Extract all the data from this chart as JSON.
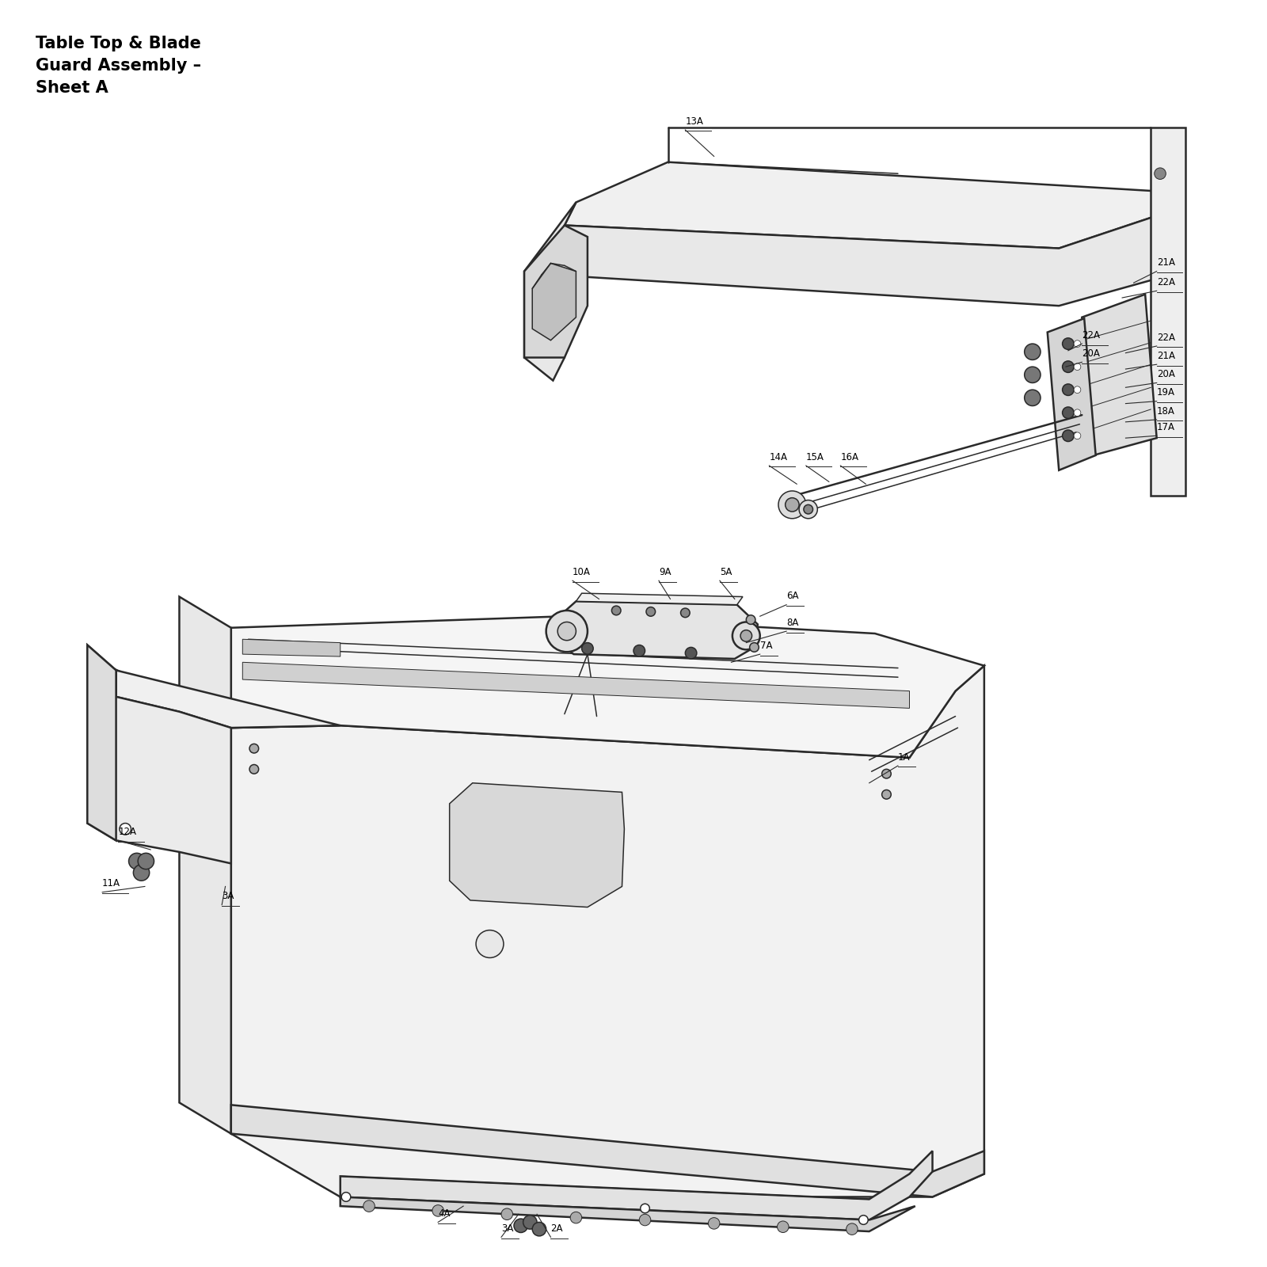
{
  "title": "Table Top & Blade\nGuard Assembly –\nSheet A",
  "background_color": "#ffffff",
  "line_color": "#2a2a2a",
  "label_color": "#000000",
  "label_fontsize": 8.5,
  "title_fontsize": 15,
  "fig_width": 16,
  "fig_height": 16,
  "upper_labels": [
    [
      "13A",
      595,
      112,
      620,
      135
    ],
    [
      "21A",
      1005,
      235,
      985,
      245
    ],
    [
      "22A",
      1005,
      252,
      975,
      258
    ],
    [
      "22A",
      940,
      298,
      928,
      304
    ],
    [
      "20A",
      940,
      314,
      926,
      318
    ],
    [
      "22A",
      1005,
      300,
      978,
      306
    ],
    [
      "21A",
      1005,
      316,
      978,
      320
    ],
    [
      "20A",
      1005,
      332,
      978,
      336
    ],
    [
      "19A",
      1005,
      348,
      978,
      350
    ],
    [
      "18A",
      1005,
      364,
      978,
      366
    ],
    [
      "17A",
      1005,
      378,
      978,
      380
    ],
    [
      "14A",
      668,
      404,
      692,
      420
    ],
    [
      "15A",
      700,
      404,
      720,
      418
    ],
    [
      "16A",
      730,
      404,
      752,
      420
    ]
  ],
  "lower_labels": [
    [
      "10A",
      497,
      504,
      520,
      520
    ],
    [
      "9A",
      572,
      504,
      582,
      520
    ],
    [
      "5A",
      625,
      504,
      638,
      520
    ],
    [
      "6A",
      683,
      525,
      660,
      535
    ],
    [
      "8A",
      683,
      548,
      648,
      558
    ],
    [
      "7A",
      660,
      568,
      635,
      575
    ],
    [
      "1A",
      780,
      665,
      755,
      680
    ],
    [
      "12A",
      102,
      730,
      130,
      738
    ],
    [
      "11A",
      88,
      775,
      125,
      770
    ],
    [
      "3A",
      192,
      786,
      195,
      770
    ],
    [
      "4A",
      380,
      1062,
      402,
      1048
    ],
    [
      "3A",
      435,
      1075,
      450,
      1055
    ],
    [
      "2A",
      478,
      1075,
      466,
      1055
    ]
  ]
}
